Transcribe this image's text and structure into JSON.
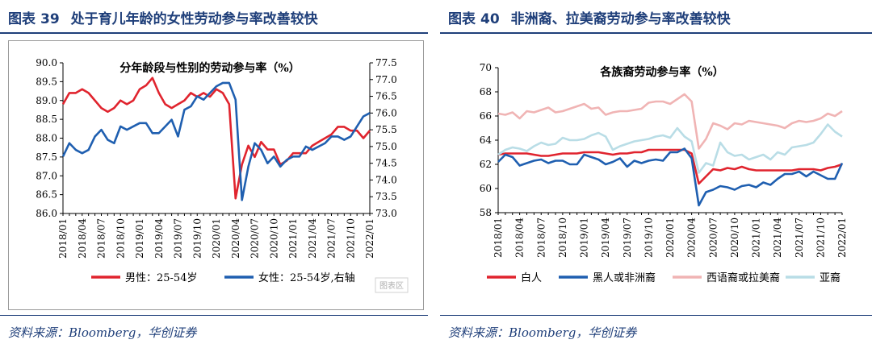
{
  "figures": [
    {
      "label": "图表",
      "number": "39",
      "title": "处于育儿年龄的女性劳动参与率改善较快",
      "source": "资料来源：Bloomberg，华创证券"
    },
    {
      "label": "图表",
      "number": "40",
      "title": "非洲裔、拉美裔劳动参与率改善较快",
      "source": "资料来源：Bloomberg，华创证券"
    }
  ],
  "chart_data": [
    {
      "type": "line",
      "title": "分年龄段与性别的劳动参与率（%）",
      "x_tick_labels": [
        "2018/01",
        "2018/04",
        "2018/07",
        "2018/10",
        "2019/01",
        "2019/04",
        "2019/07",
        "2019/10",
        "2020/01",
        "2020/04",
        "2020/07",
        "2020/10",
        "2021/01",
        "2021/04",
        "2021/07",
        "2021/10",
        "2022/01"
      ],
      "x_months": 49,
      "ylim_left": [
        86.0,
        90.0
      ],
      "yticks_left": [
        "86.0",
        "86.5",
        "87.0",
        "87.5",
        "88.0",
        "88.5",
        "89.0",
        "89.5",
        "90.0"
      ],
      "ylim_right": [
        73.0,
        77.5
      ],
      "yticks_right": [
        "73.0",
        "73.5",
        "74.0",
        "74.5",
        "75.0",
        "75.5",
        "76.0",
        "76.5",
        "77.0",
        "77.5"
      ],
      "watermark": "图表区",
      "series": [
        {
          "name": "男性：25-54岁",
          "axis": "left",
          "color": "#e0242e",
          "values": [
            88.9,
            89.2,
            89.2,
            89.3,
            89.2,
            89.0,
            88.8,
            88.7,
            88.8,
            89.0,
            88.9,
            89.0,
            89.3,
            89.4,
            89.6,
            89.2,
            88.9,
            88.8,
            88.9,
            89.0,
            89.2,
            89.1,
            89.2,
            89.1,
            89.3,
            89.2,
            88.9,
            86.4,
            87.3,
            87.8,
            87.5,
            87.9,
            87.7,
            87.7,
            87.3,
            87.4,
            87.6,
            87.6,
            87.6,
            87.8,
            87.9,
            88.0,
            88.1,
            88.3,
            88.3,
            88.2,
            88.2,
            88.0,
            88.2
          ]
        },
        {
          "name": "女性：25-54岁,右轴",
          "axis": "right",
          "color": "#1f5fb0",
          "values": [
            74.7,
            75.1,
            74.9,
            74.8,
            74.9,
            75.3,
            75.5,
            75.2,
            75.1,
            75.6,
            75.5,
            75.6,
            75.7,
            75.7,
            75.4,
            75.4,
            75.6,
            75.8,
            75.3,
            76.1,
            76.2,
            76.5,
            76.4,
            76.6,
            76.8,
            76.9,
            76.9,
            76.4,
            73.4,
            74.4,
            75.1,
            74.9,
            74.5,
            74.7,
            74.4,
            74.6,
            74.7,
            74.7,
            75.0,
            74.9,
            75.0,
            75.1,
            75.3,
            75.3,
            75.2,
            75.3,
            75.6,
            75.9,
            76.0
          ]
        }
      ]
    },
    {
      "type": "line",
      "title": "各族裔劳动参与率（%）",
      "x_tick_labels": [
        "2018/01",
        "2018/04",
        "2018/07",
        "2018/10",
        "2019/01",
        "2019/04",
        "2019/07",
        "2019/10",
        "2020/01",
        "2020/04",
        "2020/07",
        "2020/10",
        "2021/01",
        "2021/04",
        "2021/07",
        "2021/10",
        "2022/01"
      ],
      "x_months": 49,
      "ylim": [
        58,
        70
      ],
      "yticks": [
        "58",
        "60",
        "62",
        "64",
        "66",
        "68",
        "70"
      ],
      "series": [
        {
          "name": "白人",
          "color": "#e0242e",
          "values": [
            62.8,
            62.9,
            62.9,
            62.9,
            62.9,
            62.8,
            62.7,
            62.7,
            62.8,
            62.9,
            62.9,
            62.9,
            63.0,
            63.0,
            63.0,
            62.9,
            62.8,
            62.9,
            62.9,
            63.0,
            63.0,
            63.2,
            63.2,
            63.2,
            63.2,
            63.2,
            63.2,
            62.9,
            60.4,
            61.0,
            61.6,
            61.5,
            61.7,
            61.6,
            61.8,
            61.6,
            61.5,
            61.5,
            61.5,
            61.5,
            61.5,
            61.5,
            61.6,
            61.6,
            61.6,
            61.5,
            61.7,
            61.8,
            62.0
          ]
        },
        {
          "name": "黑人或非洲裔",
          "color": "#1f5fb0",
          "values": [
            62.2,
            62.8,
            62.6,
            61.9,
            62.1,
            62.3,
            62.4,
            62.1,
            62.3,
            62.3,
            62.0,
            62.0,
            62.8,
            62.6,
            62.4,
            62.0,
            62.2,
            62.5,
            61.8,
            62.3,
            62.1,
            62.3,
            62.4,
            62.3,
            63.0,
            63.0,
            63.3,
            62.5,
            58.6,
            59.7,
            59.9,
            60.2,
            60.1,
            59.9,
            60.2,
            60.3,
            60.1,
            60.5,
            60.3,
            60.8,
            61.2,
            61.2,
            61.4,
            61.0,
            61.4,
            61.1,
            60.8,
            60.8,
            62.1
          ]
        },
        {
          "name": "西语裔或拉美裔",
          "color": "#f0b4b4",
          "values": [
            66.2,
            66.1,
            66.3,
            65.8,
            66.4,
            66.3,
            66.5,
            66.7,
            66.3,
            66.4,
            66.6,
            66.8,
            67.0,
            66.6,
            66.7,
            66.1,
            66.3,
            66.4,
            66.4,
            66.5,
            66.6,
            67.1,
            67.2,
            67.2,
            67.0,
            67.4,
            67.8,
            67.2,
            63.3,
            64.1,
            65.4,
            65.2,
            64.9,
            65.4,
            65.3,
            65.6,
            65.5,
            65.4,
            65.3,
            65.2,
            65.0,
            65.4,
            65.6,
            65.5,
            65.6,
            65.8,
            66.2,
            66.0,
            66.4
          ]
        },
        {
          "name": "亚裔",
          "color": "#b9dde6",
          "values": [
            62.8,
            63.2,
            63.4,
            63.3,
            63.1,
            63.5,
            63.8,
            63.6,
            63.7,
            64.2,
            64.0,
            64.0,
            64.1,
            64.4,
            64.6,
            64.3,
            63.2,
            63.5,
            63.7,
            63.9,
            64.0,
            64.1,
            64.3,
            64.4,
            64.2,
            65.0,
            64.3,
            63.9,
            61.3,
            62.1,
            61.9,
            63.8,
            63.0,
            62.7,
            62.8,
            62.4,
            62.6,
            62.8,
            62.4,
            63.0,
            62.8,
            63.4,
            63.5,
            63.6,
            63.8,
            64.5,
            65.3,
            64.7,
            64.3
          ]
        }
      ]
    }
  ]
}
